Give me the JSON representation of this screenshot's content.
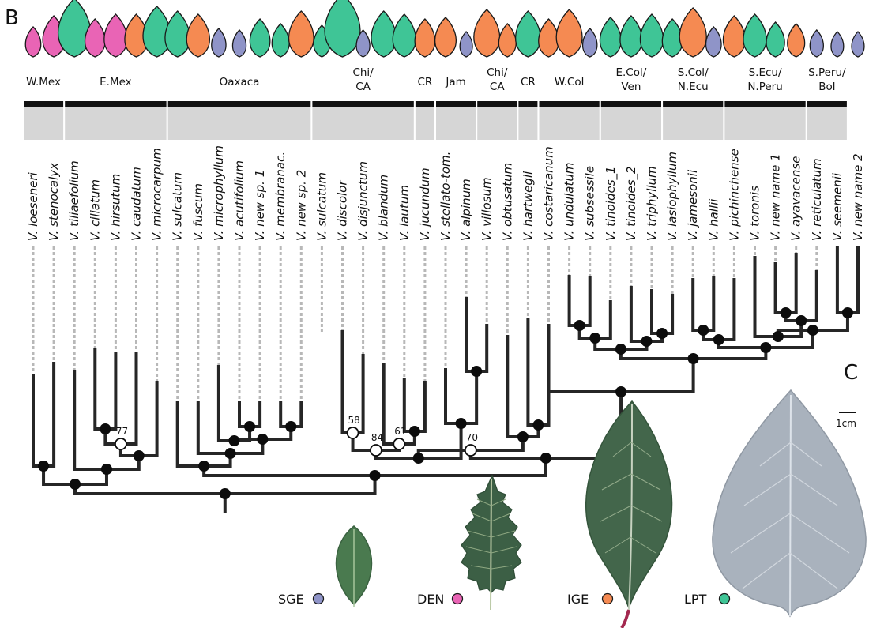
{
  "panel_b": "B",
  "panel_c": "C",
  "colors": {
    "SGE": "#8f94c8",
    "DEN": "#e964b5",
    "IGE": "#f58a52",
    "LPT": "#3fc596",
    "outline": "#1a1a1a",
    "branch": "#262626",
    "dotted": "#b8b8b8",
    "header_bg": "#d6d6d6"
  },
  "regions": [
    {
      "lines": [
        "W.Mex"
      ],
      "count": 2
    },
    {
      "lines": [
        "E.Mex"
      ],
      "count": 5
    },
    {
      "lines": [
        "Oaxaca"
      ],
      "count": 7
    },
    {
      "lines": [
        "Chi/",
        "CA"
      ],
      "count": 5
    },
    {
      "lines": [
        "CR"
      ],
      "count": 1
    },
    {
      "lines": [
        "Jam"
      ],
      "count": 2
    },
    {
      "lines": [
        "Chi/",
        "CA"
      ],
      "count": 2
    },
    {
      "lines": [
        "CR"
      ],
      "count": 1
    },
    {
      "lines": [
        "W.Col"
      ],
      "count": 3
    },
    {
      "lines": [
        "E.Col/",
        "Ven"
      ],
      "count": 3
    },
    {
      "lines": [
        "S.Col/",
        "N.Ecu"
      ],
      "count": 3
    },
    {
      "lines": [
        "S.Ecu/",
        "N.Peru"
      ],
      "count": 4
    },
    {
      "lines": [
        "S.Peru/",
        "Bol"
      ],
      "count": 2
    }
  ],
  "taxa": [
    {
      "label": "V. loeseneri",
      "leaf": "DEN",
      "size": 0.45
    },
    {
      "label": "V. stenocalyx",
      "leaf": "DEN",
      "size": 0.8
    },
    {
      "label": "V. tiliaefolium",
      "leaf": "LPT",
      "size": 1.35
    },
    {
      "label": "V. ciliatum",
      "leaf": "DEN",
      "size": 0.7
    },
    {
      "label": "V. hirsutum",
      "leaf": "DEN",
      "size": 0.85
    },
    {
      "label": "V. caudatum",
      "leaf": "IGE",
      "size": 0.85
    },
    {
      "label": "V. microcarpum",
      "leaf": "LPT",
      "size": 1.1
    },
    {
      "label": "V. sulcatum",
      "leaf": "LPT",
      "size": 0.95
    },
    {
      "label": "V. fuscum",
      "leaf": "IGE",
      "size": 0.85
    },
    {
      "label": "V. microphyllum",
      "leaf": "SGE",
      "size": 0.4
    },
    {
      "label": "V. acutifolium",
      "leaf": "SGE",
      "size": 0.35
    },
    {
      "label": "V. new sp. 1",
      "leaf": "LPT",
      "size": 0.7
    },
    {
      "label": "V. membranac.",
      "leaf": "LPT",
      "size": 0.55
    },
    {
      "label": "V. new sp. 2",
      "leaf": "IGE",
      "size": 0.95
    },
    {
      "label": "V. sulcatum",
      "leaf": "LPT",
      "size": 0.5
    },
    {
      "label": "V. discolor",
      "leaf": "LPT",
      "size": 1.5
    },
    {
      "label": "V. disjunctum",
      "leaf": "SGE",
      "size": 0.35
    },
    {
      "label": "V. blandum",
      "leaf": "LPT",
      "size": 0.95
    },
    {
      "label": "V. lautum",
      "leaf": "LPT",
      "size": 0.85
    },
    {
      "label": "V. jucundum",
      "leaf": "IGE",
      "size": 0.7
    },
    {
      "label": "V. stellato-tom.",
      "leaf": "IGE",
      "size": 0.75
    },
    {
      "label": "V. alpinum",
      "leaf": "SGE",
      "size": 0.3
    },
    {
      "label": "V. villosum",
      "leaf": "IGE",
      "size": 1.0
    },
    {
      "label": "V. obtusatum",
      "leaf": "IGE",
      "size": 0.55
    },
    {
      "label": "V. hartwegii",
      "leaf": "LPT",
      "size": 0.95
    },
    {
      "label": "V. costaricanum",
      "leaf": "IGE",
      "size": 0.7
    },
    {
      "label": "V. undulatum",
      "leaf": "IGE",
      "size": 1.0
    },
    {
      "label": "V. subsessile",
      "leaf": "SGE",
      "size": 0.4
    },
    {
      "label": "V. tinoides_1",
      "leaf": "LPT",
      "size": 0.75
    },
    {
      "label": "V. tinoides_2",
      "leaf": "LPT",
      "size": 0.8
    },
    {
      "label": "V. triphyllum",
      "leaf": "LPT",
      "size": 0.85
    },
    {
      "label": "V. lasiophyllum",
      "leaf": "LPT",
      "size": 0.7
    },
    {
      "label": "V. jamesonii",
      "leaf": "IGE",
      "size": 1.05
    },
    {
      "label": "V. hallii",
      "leaf": "SGE",
      "size": 0.45
    },
    {
      "label": "V. pichinchense",
      "leaf": "IGE",
      "size": 0.8
    },
    {
      "label": "V. toronis",
      "leaf": "LPT",
      "size": 0.85
    },
    {
      "label": "V. new name 1",
      "leaf": "LPT",
      "size": 0.6
    },
    {
      "label": "V. ayavacense",
      "leaf": "IGE",
      "size": 0.55
    },
    {
      "label": "V. reticulatum",
      "leaf": "SGE",
      "size": 0.35
    },
    {
      "label": "V. seemenii",
      "leaf": "SGE",
      "size": 0.3
    },
    {
      "label": "V. new name 2",
      "leaf": "SGE",
      "size": 0.3
    }
  ],
  "support_values": [
    {
      "label": "77"
    },
    {
      "label": "58"
    },
    {
      "label": "84"
    },
    {
      "label": "61"
    },
    {
      "label": "70"
    }
  ],
  "legend": [
    {
      "label": "SGE",
      "key": "SGE"
    },
    {
      "label": "DEN",
      "key": "DEN"
    },
    {
      "label": "IGE",
      "key": "IGE"
    },
    {
      "label": "LPT",
      "key": "LPT"
    }
  ],
  "scale_bar_label": "1cm"
}
